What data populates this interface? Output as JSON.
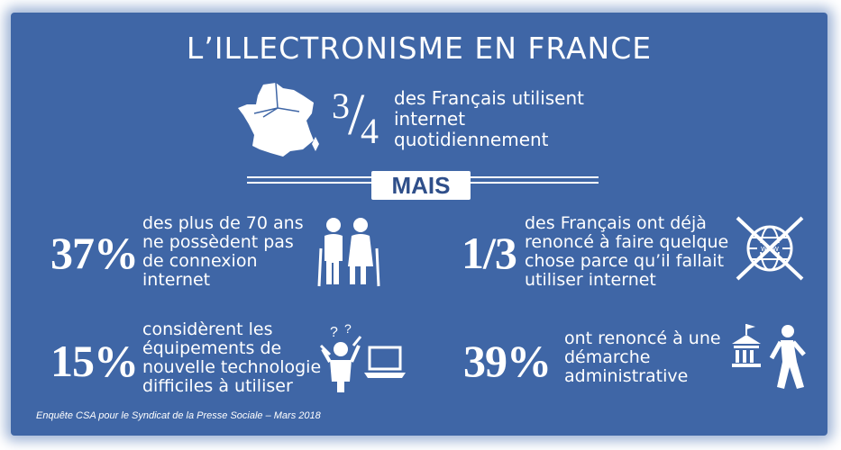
{
  "title": "L’ILLECTRONISME EN FRANCE",
  "intro": {
    "fraction_numerator": "3",
    "fraction_denominator": "4",
    "text_lines": [
      "des Français utilisent",
      "internet",
      "quotidiennement"
    ]
  },
  "divider_label": "MAIS",
  "stats": [
    {
      "value": "37%",
      "lines": [
        "des plus de 70 ans",
        "ne possèdent pas",
        "de connexion",
        "internet"
      ],
      "icon": "elderly-couple-icon"
    },
    {
      "value": "1/3",
      "lines": [
        "des Français ont déjà",
        "renoncé à faire quelque",
        "chose parce qu’il fallait",
        "utiliser internet"
      ],
      "icon": "crossed-globe-icon"
    },
    {
      "value": "15%",
      "lines": [
        "considèrent les",
        "équipements de",
        "nouvelle technologie",
        "difficiles à utiliser"
      ],
      "icon": "confused-person-laptop-icon"
    },
    {
      "value": "39%",
      "lines": [
        "ont renoncé à une",
        "démarche",
        "administrative"
      ],
      "icon": "walking-away-from-building-icon"
    }
  ],
  "source": "Enquête CSA pour le Syndicat de la Presse Sociale – Mars 2018",
  "colors": {
    "background": "#3f66a6",
    "text": "#ffffff",
    "badge_text": "#2f4f8a"
  }
}
